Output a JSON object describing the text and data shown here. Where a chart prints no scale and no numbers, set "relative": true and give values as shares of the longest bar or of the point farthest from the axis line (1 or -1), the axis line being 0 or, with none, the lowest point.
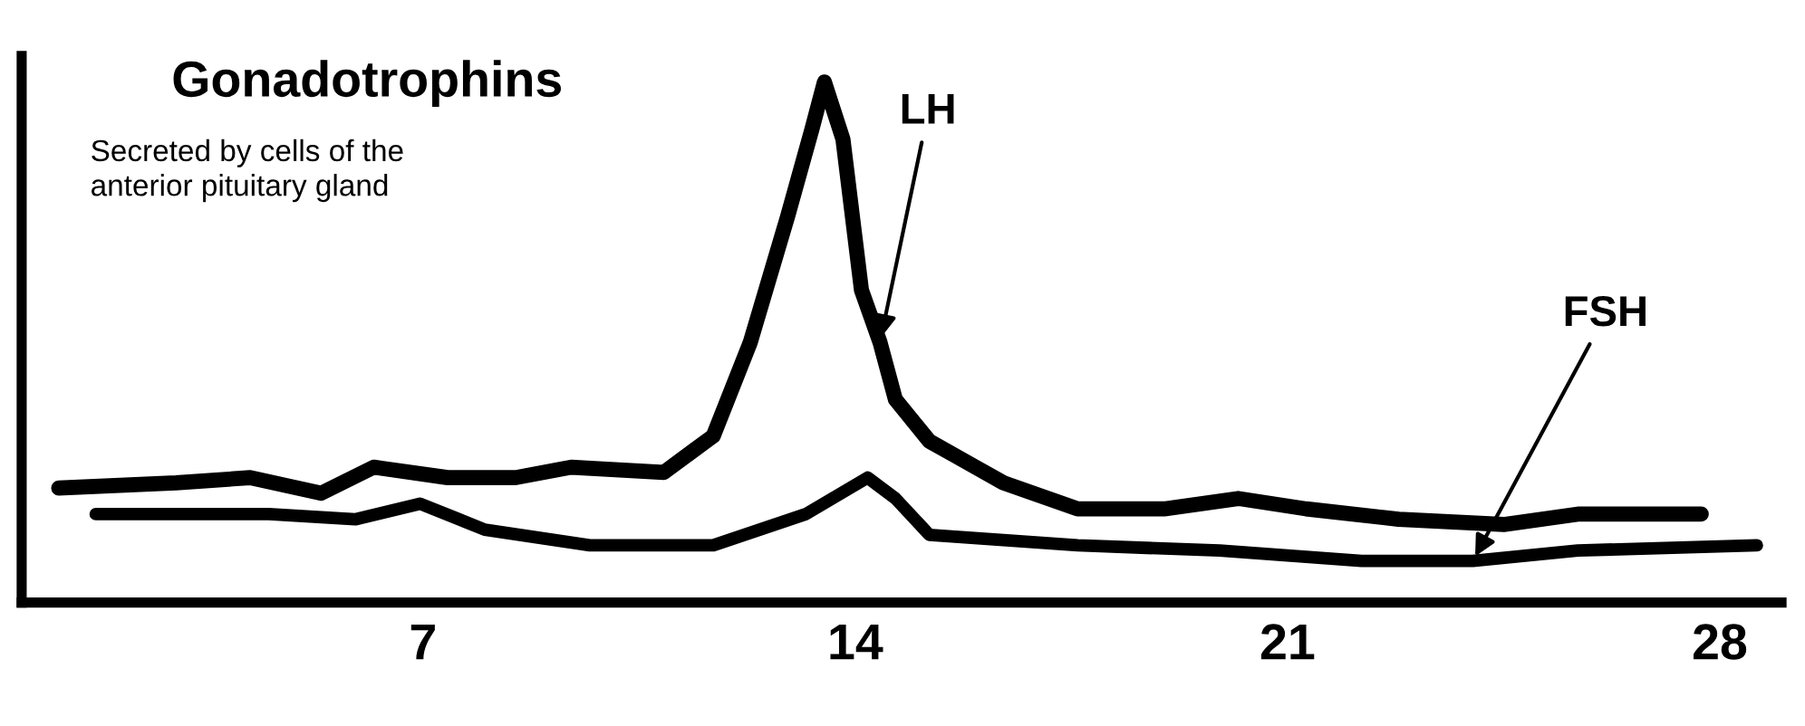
{
  "chart_data": {
    "type": "line",
    "title": "Gonadotrophins",
    "subtitle": "Secreted by cells of the\nanterior pituitary gland",
    "relative": true,
    "xlim": [
      0.5,
      29
    ],
    "xticks": [
      7,
      14,
      21,
      28
    ],
    "grid": false,
    "legend": false,
    "marker": "none",
    "line_style": "solid",
    "series": [
      {
        "name": "LH",
        "color": "#000000",
        "x": [
          1.1,
          3.0,
          4.2,
          5.35,
          6.2,
          7.4,
          8.5,
          9.4,
          10.9,
          11.7,
          12.3,
          12.9,
          13.3,
          13.5,
          13.8,
          14.1,
          14.4,
          14.65,
          15.2,
          16.4,
          17.6,
          19.0,
          20.2,
          21.3,
          22.8,
          24.5,
          25.7,
          27.7
        ],
        "values": [
          0.22,
          0.23,
          0.24,
          0.21,
          0.26,
          0.24,
          0.24,
          0.26,
          0.25,
          0.32,
          0.5,
          0.74,
          0.91,
          1.0,
          0.89,
          0.6,
          0.5,
          0.39,
          0.31,
          0.23,
          0.18,
          0.18,
          0.2,
          0.18,
          0.16,
          0.15,
          0.17,
          0.17
        ]
      },
      {
        "name": "FSH",
        "color": "#000000",
        "x": [
          1.7,
          4.5,
          5.9,
          6.95,
          8.0,
          9.7,
          11.7,
          13.2,
          14.2,
          14.65,
          15.2,
          17.6,
          19.9,
          22.2,
          24.0,
          25.7,
          28.6
        ],
        "values": [
          0.17,
          0.17,
          0.16,
          0.19,
          0.14,
          0.11,
          0.11,
          0.17,
          0.24,
          0.2,
          0.13,
          0.11,
          0.1,
          0.08,
          0.08,
          0.1,
          0.11
        ]
      }
    ]
  }
}
